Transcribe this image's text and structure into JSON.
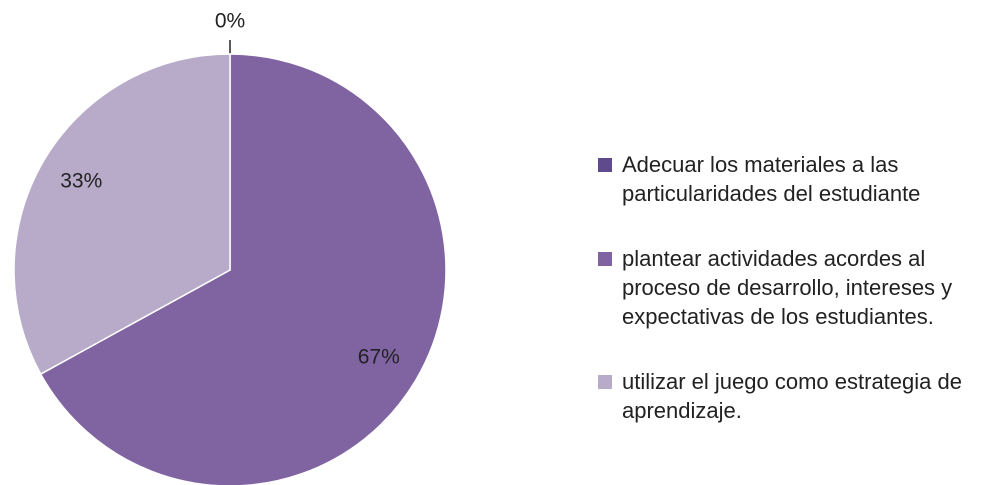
{
  "chart_data": {
    "type": "pie",
    "categories": [
      "Adecuar los materiales a las particularidades del estudiante",
      "plantear actividades acordes al proceso de desarrollo, intereses y expectativas de los estudiantes.",
      "utilizar el juego como estrategia de aprendizaje."
    ],
    "values": [
      0,
      67,
      33
    ],
    "value_labels": [
      "0%",
      "67%",
      "33%"
    ],
    "colors": [
      "#5f4b8b",
      "#8064a2",
      "#b7abc9"
    ],
    "legend": "right"
  }
}
